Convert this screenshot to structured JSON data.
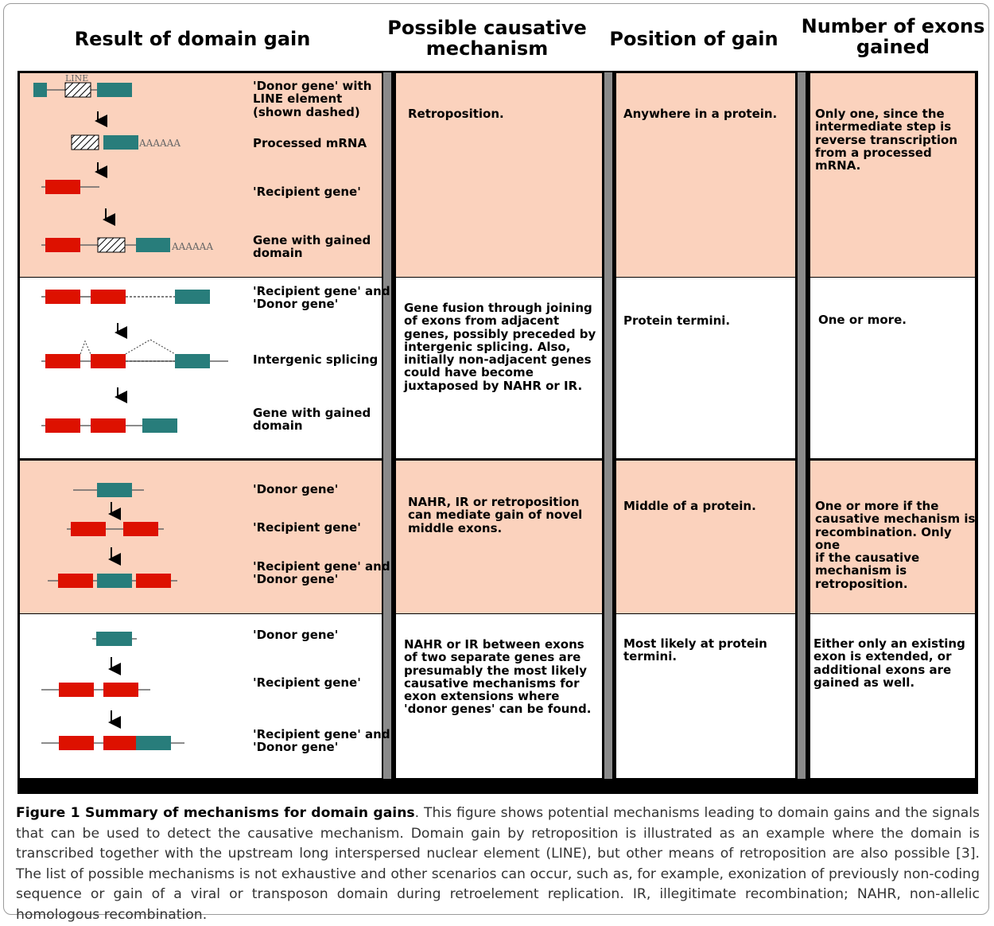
{
  "headers": {
    "result": "Result of domain gain",
    "mechanism": "Possible causative\nmechanism",
    "position": "Position of gain",
    "exons": "Number of exons\ngained"
  },
  "rows": [
    {
      "mechanism": "Retroposition.",
      "position": "Anywhere in a protein.",
      "exons": "Only one, since the\nintermediate step is\nreverse transcription\nfrom a processed mRNA.",
      "labels": [
        "'Donor gene' with\nLINE element\n(shown dashed)",
        "Processed mRNA",
        "'Recipient gene'",
        "Gene with gained\ndomain"
      ]
    },
    {
      "mechanism": "Gene fusion through joining\nof exons from adjacent\ngenes, possibly preceded by\nintergenic splicing. Also,\ninitially non-adjacent genes\ncould have become\njuxtaposed by NAHR or IR.",
      "position": "Protein termini.",
      "exons": "One or more.",
      "labels": [
        "'Recipient gene' and\n'Donor gene'",
        "Intergenic splicing",
        "Gene with gained\ndomain"
      ]
    },
    {
      "mechanism": "NAHR,  IR  or  retroposition\ncan  mediate  gain  of  novel\nmiddle exons.",
      "position": "Middle of a protein.",
      "exons": "One or more if the\ncausative mechanism is\nrecombination. Only one\nif the causative\nmechanism is\nretroposition.",
      "labels": [
        "'Donor gene'",
        "'Recipient gene'",
        "'Recipient gene' and\n'Donor gene'"
      ]
    },
    {
      "mechanism": "NAHR or IR between exons\nof two separate genes are\npresumably the most likely\ncausative mechanisms for\nexon extensions where\n'donor genes' can be found.",
      "position": "Most likely at protein\ntermini.",
      "exons": "Either only an existing\nexon is extended, or\nadditional exons are\ngained as well.",
      "labels": [
        "'Donor gene'",
        "'Recipient gene'",
        "'Recipient gene' and\n'Donor gene'"
      ]
    }
  ],
  "diagram_text": {
    "line_label": "LINE",
    "polya": "AAAAAA"
  },
  "colors": {
    "pink": "#fbd2bd",
    "red_exon": "#dd1100",
    "teal_exon": "#287d7b"
  },
  "caption": {
    "label": "Figure 1 Summary of mechanisms for domain gains",
    "text": ". This figure shows potential mechanisms leading to domain gains and the signals that can be used to detect the causative mechanism. Domain gain by retroposition is illustrated as an example where the domain is transcribed together with the upstream long interspersed nuclear element (LINE), but other means of retroposition are also possible [3]. The list of possible mechanisms is not exhaustive and other scenarios can occur, such as, for example, exonization of previously non-coding sequence or gain of a viral or transposon domain during retroelement replication. IR, illegitimate recombination; NAHR, non-allelic homologous recombination."
  }
}
